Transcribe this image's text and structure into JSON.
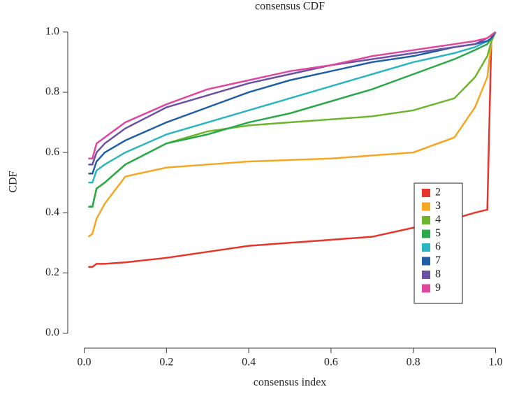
{
  "chart_data": {
    "type": "line",
    "title": "consensus CDF",
    "x_label": "consensus index",
    "y_label": "CDF",
    "x": [
      0.01,
      0.02,
      0.03,
      0.05,
      0.1,
      0.2,
      0.3,
      0.4,
      0.5,
      0.6,
      0.7,
      0.8,
      0.9,
      0.95,
      0.98,
      0.99,
      1.0
    ],
    "series": [
      {
        "name": "2",
        "color": "#e8352a",
        "values": [
          0.22,
          0.22,
          0.23,
          0.23,
          0.235,
          0.25,
          0.27,
          0.29,
          0.3,
          0.31,
          0.32,
          0.35,
          0.38,
          0.4,
          0.41,
          0.99,
          1.0
        ]
      },
      {
        "name": "3",
        "color": "#f5a623",
        "values": [
          0.32,
          0.33,
          0.38,
          0.43,
          0.52,
          0.55,
          0.56,
          0.57,
          0.575,
          0.58,
          0.59,
          0.6,
          0.65,
          0.75,
          0.85,
          0.97,
          1.0
        ]
      },
      {
        "name": "4",
        "color": "#6cb52d",
        "values": [
          0.42,
          0.42,
          0.48,
          0.5,
          0.56,
          0.63,
          0.67,
          0.69,
          0.7,
          0.71,
          0.72,
          0.74,
          0.78,
          0.85,
          0.92,
          0.97,
          1.0
        ]
      },
      {
        "name": "5",
        "color": "#2ba84a",
        "values": [
          0.42,
          0.42,
          0.48,
          0.5,
          0.56,
          0.63,
          0.66,
          0.7,
          0.73,
          0.77,
          0.81,
          0.86,
          0.91,
          0.94,
          0.96,
          0.98,
          1.0
        ]
      },
      {
        "name": "6",
        "color": "#2bb5c0",
        "values": [
          0.5,
          0.5,
          0.54,
          0.56,
          0.6,
          0.66,
          0.7,
          0.74,
          0.78,
          0.82,
          0.86,
          0.9,
          0.93,
          0.95,
          0.97,
          0.98,
          1.0
        ]
      },
      {
        "name": "7",
        "color": "#1f5fa6",
        "values": [
          0.53,
          0.53,
          0.57,
          0.6,
          0.64,
          0.7,
          0.75,
          0.8,
          0.84,
          0.87,
          0.9,
          0.92,
          0.95,
          0.96,
          0.97,
          0.98,
          1.0
        ]
      },
      {
        "name": "8",
        "color": "#6a51a3",
        "values": [
          0.56,
          0.56,
          0.6,
          0.63,
          0.68,
          0.75,
          0.79,
          0.83,
          0.86,
          0.89,
          0.91,
          0.93,
          0.95,
          0.96,
          0.98,
          0.99,
          1.0
        ]
      },
      {
        "name": "9",
        "color": "#e0479e",
        "values": [
          0.58,
          0.58,
          0.63,
          0.65,
          0.7,
          0.76,
          0.81,
          0.84,
          0.87,
          0.89,
          0.92,
          0.94,
          0.96,
          0.97,
          0.98,
          0.99,
          1.0
        ]
      }
    ],
    "xlim": [
      -0.04,
      1.04
    ],
    "ylim": [
      -0.05,
      1.06
    ],
    "xticks": [
      {
        "value": 0,
        "label": "0.0"
      },
      0.2,
      0.4,
      0.6,
      0.8,
      {
        "value": 1,
        "label": "1.0"
      }
    ],
    "yticks": [
      {
        "value": 0,
        "label": "0.0"
      },
      0.2,
      0.4,
      0.6,
      0.8,
      {
        "value": 1,
        "label": "1.0"
      }
    ],
    "legend": "right"
  }
}
